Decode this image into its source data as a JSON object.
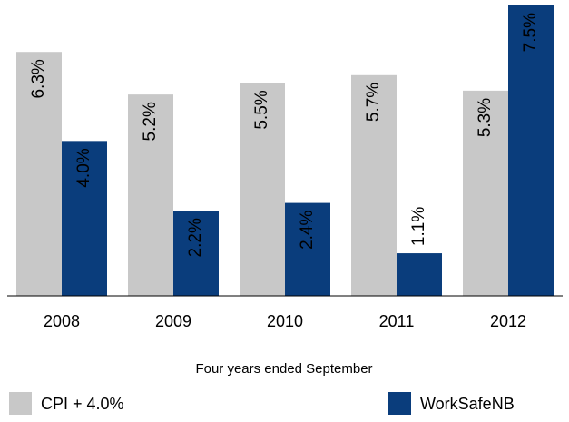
{
  "chart_data": {
    "type": "bar",
    "categories": [
      "2008",
      "2009",
      "2010",
      "2011",
      "2012"
    ],
    "x_label": "Four years ended September",
    "legend": "bottom",
    "series": [
      {
        "name": "CPI + 4.0%",
        "color": "#c8c8c8",
        "values": [
          6.3,
          5.2,
          5.5,
          5.7,
          5.3
        ],
        "value_labels": [
          "6.3%",
          "5.2%",
          "5.5%",
          "5.7%",
          "5.3%"
        ]
      },
      {
        "name": "WorkSafeNB",
        "color": "#0a3d7c",
        "values": [
          4.0,
          2.2,
          2.4,
          1.1,
          7.5
        ],
        "value_labels": [
          "4.0%",
          "2.2%",
          "2.4%",
          "1.1%",
          "7.5%"
        ]
      }
    ]
  }
}
